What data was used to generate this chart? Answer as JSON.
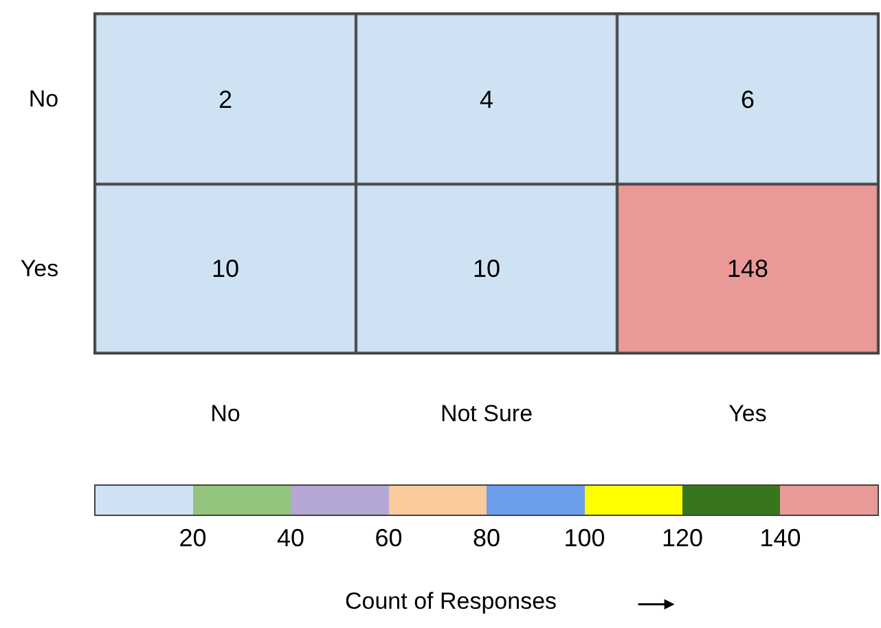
{
  "chart_data": {
    "type": "heatmap",
    "categories": [
      "No",
      "Not Sure",
      "Yes"
    ],
    "y_categories": [
      "No",
      "Yes"
    ],
    "cells": [
      [
        2,
        4,
        6
      ],
      [
        10,
        10,
        148
      ]
    ],
    "data_labels": true,
    "clim": [
      0,
      160
    ],
    "cticks": [
      20,
      40,
      60,
      80,
      100,
      120,
      140
    ],
    "colors": [
      "#cfe2f3",
      "#93c47d",
      "#b4a7d6",
      "#f9cb9c",
      "#6d9eeb",
      "#ffff00",
      "#38761d",
      "#ea9999"
    ],
    "clabel": "Count of Responses"
  }
}
